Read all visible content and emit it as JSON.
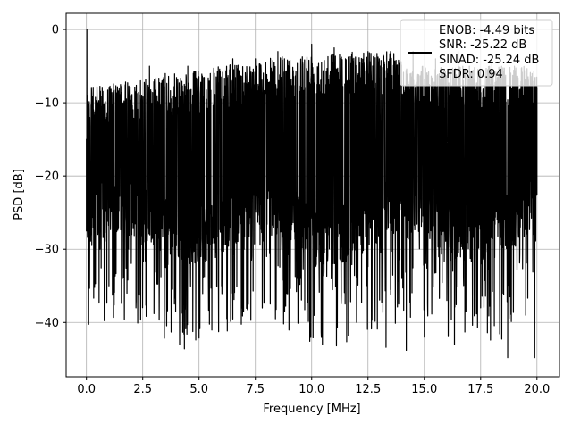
{
  "chart_data": {
    "type": "line",
    "xlabel": "Frequency [MHz]",
    "ylabel": "PSD [dB]",
    "xlim": [
      -0.9,
      21.0
    ],
    "ylim": [
      -47.4,
      2.2
    ],
    "xticks": [
      0.0,
      2.5,
      5.0,
      7.5,
      10.0,
      12.5,
      15.0,
      17.5,
      20.0
    ],
    "xtick_labels": [
      "0.0",
      "2.5",
      "5.0",
      "7.5",
      "10.0",
      "12.5",
      "15.0",
      "17.5",
      "20.0"
    ],
    "yticks": [
      0,
      -10,
      -20,
      -30,
      -40
    ],
    "ytick_labels": [
      "0",
      "−10",
      "−20",
      "−30",
      "−40"
    ],
    "grid": true,
    "legend_position": "top-right",
    "legend_entries": [
      "ENOB: -4.49 bits",
      "SNR: -25.22 dB",
      "SINAD: -25.24 dB",
      "SFDR: 0.94"
    ],
    "line_color": "#000000",
    "series": [
      {
        "description_values_note": "",
        "x": [
          0.0,
          0.02,
          0.05,
          0.1,
          0.15,
          0.2,
          0.3,
          0.4,
          0.5,
          0.6,
          0.7,
          0.8,
          0.9,
          1.0,
          1.2,
          1.4,
          1.6,
          1.8,
          2.0,
          2.2,
          2.4,
          2.6,
          2.8,
          3.0,
          3.5,
          4.0,
          4.35,
          4.5,
          5.0,
          5.5,
          6.0,
          6.5,
          7.0,
          7.3,
          7.5,
          8.0,
          8.5,
          8.8,
          9.0,
          9.5,
          10.0,
          10.5,
          11.0,
          11.1,
          11.5,
          12.0,
          12.5,
          12.8,
          13.0,
          13.3,
          13.5,
          14.0,
          14.2,
          14.5,
          15.0,
          15.5,
          16.0,
          16.5,
          16.8,
          17.0,
          17.5,
          17.8,
          18.0,
          18.5,
          18.7,
          19.0,
          19.5,
          19.9,
          20.0
        ],
        "y": [
          -15.0,
          0.0,
          -9.0,
          -39.7,
          -12.0,
          -28.0,
          -8.0,
          -34.7,
          -10.0,
          -30.0,
          -8.0,
          -36.0,
          -12.0,
          -35.0,
          -39.3,
          -10.0,
          -34.0,
          -36.0,
          -9.0,
          -38.0,
          -7.0,
          -29.0,
          -5.0,
          -38.8,
          -6.0,
          -28.0,
          -43.6,
          -5.0,
          -32.3,
          -6.0,
          -35.0,
          -4.0,
          -30.0,
          -39.7,
          -4.0,
          -31.0,
          -3.0,
          -38.5,
          -5.0,
          -34.0,
          -2.0,
          -32.0,
          -2.5,
          -43.2,
          -4.0,
          -33.0,
          -3.0,
          -36.5,
          -4.0,
          -43.4,
          -3.0,
          -34.0,
          -43.8,
          -3.0,
          -42.0,
          -4.0,
          -37.0,
          -3.0,
          -41.3,
          -5.0,
          -38.0,
          -41.4,
          -4.0,
          -36.0,
          -44.8,
          -5.0,
          -39.0,
          -44.8,
          -8.0
        ]
      }
    ]
  }
}
